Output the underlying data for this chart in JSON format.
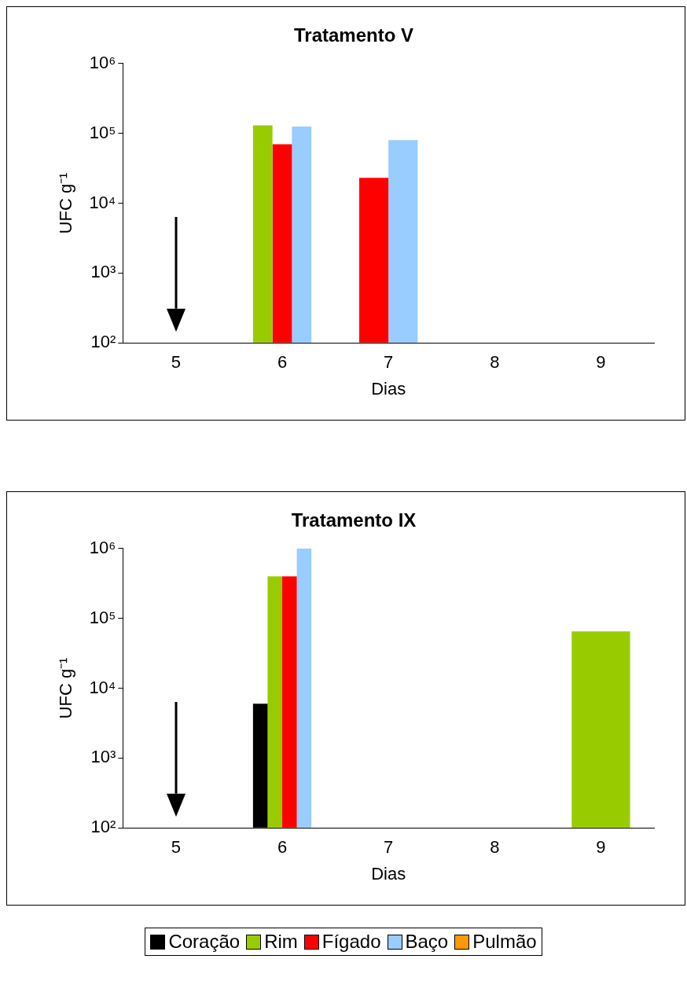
{
  "chart_data": [
    {
      "type": "bar",
      "title": "Tratamento V",
      "xlabel": "Dias",
      "ylabel": "UFC g⁻¹",
      "categories": [
        "5",
        "6",
        "7",
        "8",
        "9"
      ],
      "series": [
        {
          "name": "Rim",
          "color": "#99cc00",
          "values": [
            null,
            130000,
            null,
            null,
            null
          ]
        },
        {
          "name": "Fígado",
          "color": "#ff0000",
          "values": [
            null,
            70000,
            23000,
            null,
            null
          ]
        },
        {
          "name": "Baço",
          "color": "#99ccff",
          "values": [
            null,
            125000,
            80000,
            null,
            null
          ]
        }
      ],
      "log": true,
      "ylim": [
        100,
        1000000
      ],
      "yticks": [
        {
          "value": 100,
          "label": "10²"
        },
        {
          "value": 1000,
          "label": "10³"
        },
        {
          "value": 10000,
          "label": "10⁴"
        },
        {
          "value": 100000,
          "label": "10⁵"
        },
        {
          "value": 1000000,
          "label": "10⁶"
        }
      ],
      "grid": false,
      "legend": "bottom"
    },
    {
      "type": "bar",
      "title": "Tratamento IX",
      "xlabel": "Dias",
      "ylabel": "UFC g⁻¹",
      "categories": [
        "5",
        "6",
        "7",
        "8",
        "9"
      ],
      "series": [
        {
          "name": "Coração",
          "color": "#000000",
          "values": [
            null,
            6000,
            null,
            null,
            null
          ]
        },
        {
          "name": "Rim",
          "color": "#99cc00",
          "values": [
            null,
            400000,
            null,
            null,
            65000
          ]
        },
        {
          "name": "Fígado",
          "color": "#ff0000",
          "values": [
            null,
            400000,
            null,
            null,
            null
          ]
        },
        {
          "name": "Baço",
          "color": "#99ccff",
          "values": [
            null,
            1000000,
            null,
            null,
            null
          ]
        },
        {
          "name": "Pulmão",
          "color": "#ff9900",
          "values": [
            null,
            null,
            null,
            null,
            null
          ]
        }
      ],
      "log": true,
      "ylim": [
        100,
        1000000
      ],
      "yticks": [
        {
          "value": 100,
          "label": "10²"
        },
        {
          "value": 1000,
          "label": "10³"
        },
        {
          "value": 10000,
          "label": "10⁴"
        },
        {
          "value": 100000,
          "label": "10⁵"
        },
        {
          "value": 1000000,
          "label": "10⁶"
        }
      ],
      "grid": false,
      "legend": "bottom"
    }
  ]
}
